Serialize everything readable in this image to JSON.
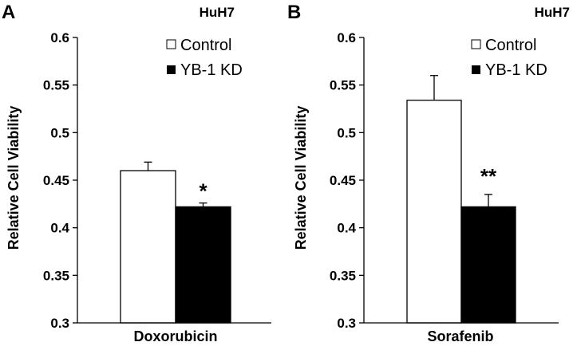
{
  "chart_data": [
    {
      "type": "bar",
      "panel_label": "A",
      "cell_line": "HuH7",
      "categories": [
        "Doxorubicin"
      ],
      "xlabel": "Doxorubicin",
      "ylabel": "Relative Cell Viability",
      "ylim": [
        0.3,
        0.6
      ],
      "yticks": [
        "0.3",
        "0.35",
        "0.4",
        "0.45",
        "0.5",
        "0.55",
        "0.6"
      ],
      "series": [
        {
          "name": "Control",
          "values": [
            0.46
          ],
          "errors": [
            0.009
          ],
          "color": "#ffffff"
        },
        {
          "name": "YB-1 KD",
          "values": [
            0.422
          ],
          "errors": [
            0.004
          ],
          "color": "#000000"
        }
      ],
      "significance": "*",
      "legend": "top-right",
      "grid": false
    },
    {
      "type": "bar",
      "panel_label": "B",
      "cell_line": "HuH7",
      "categories": [
        "Sorafenib"
      ],
      "xlabel": "Sorafenib",
      "ylabel": "Relative Cell Viability",
      "ylim": [
        0.3,
        0.6
      ],
      "yticks": [
        "0.3",
        "0.35",
        "0.4",
        "0.45",
        "0.5",
        "0.55",
        "0.6"
      ],
      "series": [
        {
          "name": "Control",
          "values": [
            0.534
          ],
          "errors": [
            0.026
          ],
          "color": "#ffffff"
        },
        {
          "name": "YB-1 KD",
          "values": [
            0.422
          ],
          "errors": [
            0.013
          ],
          "color": "#000000"
        }
      ],
      "significance": "**",
      "legend": "top-right",
      "grid": false
    }
  ]
}
